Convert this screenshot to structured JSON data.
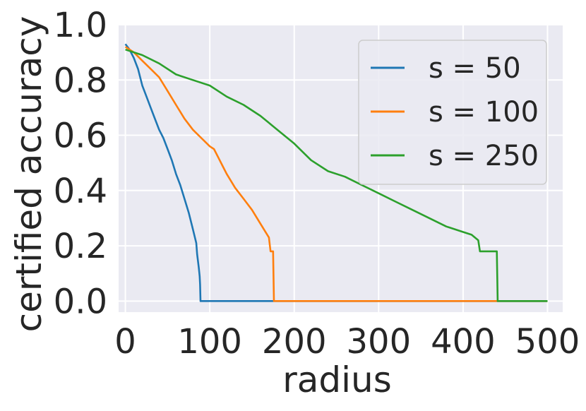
{
  "chart_data": {
    "type": "line",
    "title": "",
    "xlabel": "radius",
    "ylabel": "certified accuracy",
    "xlim": [
      -8,
      518
    ],
    "ylim": [
      -0.04,
      1.0
    ],
    "xticks": [
      0,
      100,
      200,
      300,
      400,
      500
    ],
    "xtick_labels": [
      "0",
      "100",
      "200",
      "300",
      "400",
      "500"
    ],
    "yticks": [
      0.0,
      0.2,
      0.4,
      0.6,
      0.8,
      1.0
    ],
    "ytick_labels": [
      "0.0",
      "0.2",
      "0.4",
      "0.6",
      "0.8",
      "1.0"
    ],
    "grid": true,
    "legend_position": "top-right",
    "series": [
      {
        "name": "s = 50",
        "color": "#1f77b4",
        "x": [
          0,
          5,
          10,
          15,
          20,
          25,
          30,
          35,
          40,
          45,
          50,
          55,
          60,
          65,
          70,
          75,
          80,
          84,
          85,
          87,
          88,
          88.5,
          89,
          500
        ],
        "y": [
          0.93,
          0.91,
          0.88,
          0.84,
          0.78,
          0.74,
          0.7,
          0.66,
          0.62,
          0.59,
          0.55,
          0.51,
          0.46,
          0.42,
          0.37,
          0.32,
          0.26,
          0.21,
          0.17,
          0.12,
          0.09,
          0.06,
          0.0,
          0.0
        ]
      },
      {
        "name": "s = 100",
        "color": "#ff7f0e",
        "x": [
          0,
          10,
          20,
          30,
          40,
          50,
          60,
          70,
          80,
          90,
          100,
          105,
          110,
          115,
          120,
          130,
          140,
          150,
          160,
          168,
          170,
          172,
          174,
          175,
          176,
          500
        ],
        "y": [
          0.92,
          0.9,
          0.87,
          0.84,
          0.81,
          0.76,
          0.71,
          0.66,
          0.62,
          0.59,
          0.56,
          0.55,
          0.52,
          0.49,
          0.46,
          0.41,
          0.37,
          0.33,
          0.28,
          0.24,
          0.23,
          0.18,
          0.18,
          0.18,
          0.0,
          0.0
        ]
      },
      {
        "name": "s = 250",
        "color": "#2ca02c",
        "x": [
          0,
          20,
          40,
          60,
          80,
          100,
          120,
          140,
          160,
          180,
          200,
          220,
          240,
          260,
          280,
          300,
          320,
          340,
          360,
          380,
          400,
          410,
          418,
          420,
          425,
          435,
          439,
          440,
          441,
          500
        ],
        "y": [
          0.91,
          0.89,
          0.86,
          0.82,
          0.8,
          0.78,
          0.74,
          0.71,
          0.67,
          0.62,
          0.57,
          0.51,
          0.47,
          0.45,
          0.42,
          0.39,
          0.36,
          0.33,
          0.3,
          0.27,
          0.25,
          0.24,
          0.22,
          0.18,
          0.18,
          0.18,
          0.18,
          0.18,
          0.0,
          0.0
        ]
      }
    ]
  }
}
